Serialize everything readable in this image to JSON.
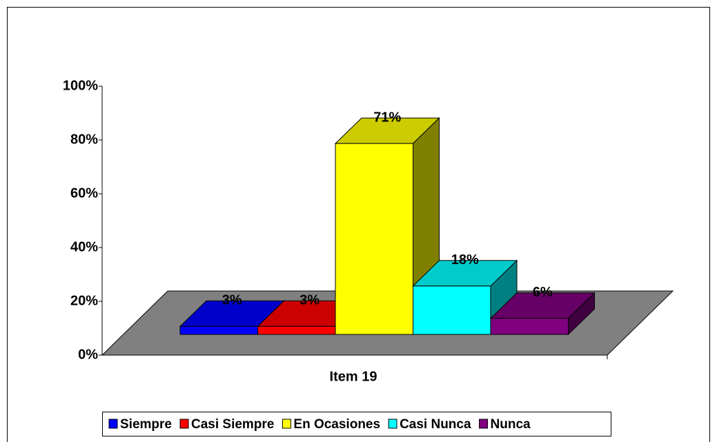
{
  "chart_data": {
    "type": "bar3d",
    "categories": [
      "Item 19"
    ],
    "series": [
      {
        "name": "Siempre",
        "color": "#0000ff",
        "values": [
          3
        ],
        "value_labels": [
          "3%"
        ]
      },
      {
        "name": "Casi Siempre",
        "color": "#ff0000",
        "values": [
          3
        ],
        "value_labels": [
          "3%"
        ]
      },
      {
        "name": "En Ocasiones",
        "color": "#ffff00",
        "values": [
          71
        ],
        "value_labels": [
          "71%"
        ]
      },
      {
        "name": "Casi Nunca",
        "color": "#00ffff",
        "values": [
          18
        ],
        "value_labels": [
          "18%"
        ]
      },
      {
        "name": "Nunca",
        "color": "#800080",
        "values": [
          6
        ],
        "value_labels": [
          "6%"
        ]
      }
    ],
    "ylim": [
      0,
      100
    ],
    "yticks": [
      {
        "value": 0,
        "label": "0%"
      },
      {
        "value": 20,
        "label": "20%"
      },
      {
        "value": 40,
        "label": "40%"
      },
      {
        "value": 60,
        "label": "60%"
      },
      {
        "value": 80,
        "label": "80%"
      },
      {
        "value": 100,
        "label": "100%"
      }
    ],
    "legend": "bottom"
  }
}
